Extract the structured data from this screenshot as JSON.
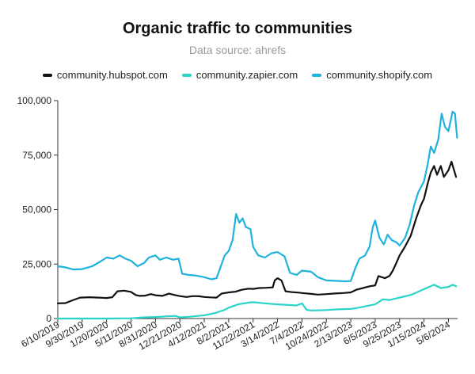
{
  "chart_data": {
    "type": "line",
    "title": "Organic traffic to communities",
    "subtitle": "Data source: ahrefs",
    "xlabel": "",
    "ylabel": "",
    "ylim": [
      0,
      100000
    ],
    "y_ticks": [
      "0",
      "25,000",
      "50,000",
      "75,000",
      "100,000"
    ],
    "x_ticks": [
      "6/10/2019",
      "9/30/2019",
      "1/20/2020",
      "5/11/2020",
      "8/31/2020",
      "12/21/2020",
      "4/12/2021",
      "8/2/2021",
      "11/22/2021",
      "3/14/2022",
      "7/4/2022",
      "10/24/2022",
      "2/13/2023",
      "6/5/2023",
      "9/25/2023",
      "1/15/2024",
      "5/6/2024"
    ],
    "x_range": [
      "2019-06-10",
      "2024-06-17"
    ],
    "legend_position": "top",
    "grid": false,
    "series": [
      {
        "name": "community.hubspot.com",
        "color": "#111111",
        "points": [
          [
            "2019-06-10",
            7000
          ],
          [
            "2019-07-15",
            7100
          ],
          [
            "2019-08-20",
            8500
          ],
          [
            "2019-09-20",
            9600
          ],
          [
            "2019-11-01",
            9800
          ],
          [
            "2019-12-15",
            9600
          ],
          [
            "2020-01-20",
            9400
          ],
          [
            "2020-02-15",
            9800
          ],
          [
            "2020-03-10",
            12500
          ],
          [
            "2020-04-10",
            12800
          ],
          [
            "2020-05-11",
            12200
          ],
          [
            "2020-06-01",
            10800
          ],
          [
            "2020-06-20",
            10400
          ],
          [
            "2020-07-15",
            10500
          ],
          [
            "2020-08-10",
            11200
          ],
          [
            "2020-08-31",
            10700
          ],
          [
            "2020-10-01",
            10400
          ],
          [
            "2020-11-01",
            11400
          ],
          [
            "2020-12-01",
            10700
          ],
          [
            "2020-12-21",
            10300
          ],
          [
            "2021-01-20",
            9900
          ],
          [
            "2021-02-20",
            10300
          ],
          [
            "2021-03-20",
            10200
          ],
          [
            "2021-04-12",
            9900
          ],
          [
            "2021-05-10",
            9700
          ],
          [
            "2021-06-07",
            9600
          ],
          [
            "2021-07-01",
            11500
          ],
          [
            "2021-08-02",
            12000
          ],
          [
            "2021-09-01",
            12300
          ],
          [
            "2021-10-01",
            13200
          ],
          [
            "2021-11-01",
            13700
          ],
          [
            "2021-11-22",
            13600
          ],
          [
            "2021-12-20",
            14000
          ],
          [
            "2022-01-20",
            14100
          ],
          [
            "2022-02-20",
            14300
          ],
          [
            "2022-03-01",
            17500
          ],
          [
            "2022-03-14",
            18500
          ],
          [
            "2022-04-01",
            17500
          ],
          [
            "2022-04-20",
            12500
          ],
          [
            "2022-05-20",
            12100
          ],
          [
            "2022-06-20",
            11900
          ],
          [
            "2022-07-04",
            11700
          ],
          [
            "2022-08-15",
            11300
          ],
          [
            "2022-09-15",
            11000
          ],
          [
            "2022-10-24",
            11200
          ],
          [
            "2022-12-01",
            11500
          ],
          [
            "2023-01-10",
            11700
          ],
          [
            "2023-02-13",
            12000
          ],
          [
            "2023-03-10",
            13200
          ],
          [
            "2023-04-10",
            14000
          ],
          [
            "2023-05-10",
            14800
          ],
          [
            "2023-06-05",
            15200
          ],
          [
            "2023-06-20",
            19500
          ],
          [
            "2023-07-20",
            18500
          ],
          [
            "2023-08-10",
            19600
          ],
          [
            "2023-08-25",
            22000
          ],
          [
            "2023-09-10",
            25500
          ],
          [
            "2023-09-25",
            29000
          ],
          [
            "2023-10-20",
            33000
          ],
          [
            "2023-11-15",
            38000
          ],
          [
            "2023-12-10",
            46000
          ],
          [
            "2024-01-01",
            52000
          ],
          [
            "2024-01-15",
            55000
          ],
          [
            "2024-02-01",
            62000
          ],
          [
            "2024-02-15",
            67000
          ],
          [
            "2024-03-01",
            70000
          ],
          [
            "2024-03-15",
            66000
          ],
          [
            "2024-04-01",
            70000
          ],
          [
            "2024-04-15",
            65000
          ],
          [
            "2024-05-06",
            68000
          ],
          [
            "2024-05-20",
            72000
          ],
          [
            "2024-06-10",
            65000
          ]
        ]
      },
      {
        "name": "community.zapier.com",
        "color": "#2bd4c9",
        "points": [
          [
            "2019-06-10",
            0
          ],
          [
            "2020-01-20",
            0
          ],
          [
            "2020-05-11",
            100
          ],
          [
            "2020-07-01",
            500
          ],
          [
            "2020-08-31",
            700
          ],
          [
            "2020-10-15",
            1000
          ],
          [
            "2020-12-01",
            1200
          ],
          [
            "2020-12-21",
            500
          ],
          [
            "2021-02-01",
            800
          ],
          [
            "2021-04-12",
            1500
          ],
          [
            "2021-06-01",
            2500
          ],
          [
            "2021-07-15",
            4000
          ],
          [
            "2021-08-02",
            5000
          ],
          [
            "2021-09-15",
            6500
          ],
          [
            "2021-11-01",
            7300
          ],
          [
            "2021-11-22",
            7500
          ],
          [
            "2022-01-15",
            7000
          ],
          [
            "2022-03-14",
            6500
          ],
          [
            "2022-05-01",
            6200
          ],
          [
            "2022-06-10",
            6000
          ],
          [
            "2022-07-04",
            7000
          ],
          [
            "2022-07-25",
            4000
          ],
          [
            "2022-08-15",
            3700
          ],
          [
            "2022-10-24",
            3900
          ],
          [
            "2022-12-15",
            4200
          ],
          [
            "2023-02-13",
            4400
          ],
          [
            "2023-04-01",
            5200
          ],
          [
            "2023-06-05",
            6500
          ],
          [
            "2023-07-10",
            8800
          ],
          [
            "2023-08-10",
            8500
          ],
          [
            "2023-09-25",
            9600
          ],
          [
            "2023-11-20",
            11000
          ],
          [
            "2024-01-15",
            13500
          ],
          [
            "2024-03-01",
            15500
          ],
          [
            "2024-04-01",
            14000
          ],
          [
            "2024-05-06",
            14500
          ],
          [
            "2024-05-25",
            15500
          ],
          [
            "2024-06-10",
            14800
          ]
        ]
      },
      {
        "name": "community.shopify.com",
        "color": "#20b2de",
        "points": [
          [
            "2019-06-10",
            24000
          ],
          [
            "2019-07-15",
            23500
          ],
          [
            "2019-08-20",
            22500
          ],
          [
            "2019-09-30",
            22700
          ],
          [
            "2019-11-15",
            24000
          ],
          [
            "2019-12-20",
            26000
          ],
          [
            "2020-01-20",
            28000
          ],
          [
            "2020-02-20",
            27500
          ],
          [
            "2020-03-20",
            29000
          ],
          [
            "2020-04-15",
            27500
          ],
          [
            "2020-05-11",
            26500
          ],
          [
            "2020-06-10",
            24000
          ],
          [
            "2020-07-10",
            25500
          ],
          [
            "2020-08-01",
            28000
          ],
          [
            "2020-08-31",
            29000
          ],
          [
            "2020-09-20",
            27000
          ],
          [
            "2020-10-20",
            28000
          ],
          [
            "2020-11-20",
            27000
          ],
          [
            "2020-12-15",
            27500
          ],
          [
            "2021-01-01",
            20500
          ],
          [
            "2021-02-01",
            20000
          ],
          [
            "2021-03-01",
            19800
          ],
          [
            "2021-04-12",
            19000
          ],
          [
            "2021-05-15",
            18000
          ],
          [
            "2021-06-07",
            18500
          ],
          [
            "2021-07-15",
            29000
          ],
          [
            "2021-08-02",
            31000
          ],
          [
            "2021-08-20",
            36000
          ],
          [
            "2021-09-05",
            48000
          ],
          [
            "2021-09-20",
            44000
          ],
          [
            "2021-10-05",
            46000
          ],
          [
            "2021-10-20",
            42000
          ],
          [
            "2021-11-10",
            41000
          ],
          [
            "2021-11-22",
            33000
          ],
          [
            "2021-12-15",
            29000
          ],
          [
            "2022-01-15",
            28000
          ],
          [
            "2022-02-15",
            30000
          ],
          [
            "2022-03-14",
            30500
          ],
          [
            "2022-04-15",
            28500
          ],
          [
            "2022-05-10",
            21000
          ],
          [
            "2022-06-10",
            20000
          ],
          [
            "2022-07-04",
            22000
          ],
          [
            "2022-08-15",
            21500
          ],
          [
            "2022-09-15",
            19000
          ],
          [
            "2022-10-24",
            17500
          ],
          [
            "2022-12-01",
            17300
          ],
          [
            "2023-01-15",
            17100
          ],
          [
            "2023-02-13",
            17200
          ],
          [
            "2023-03-05",
            23000
          ],
          [
            "2023-03-25",
            27500
          ],
          [
            "2023-04-20",
            29000
          ],
          [
            "2023-05-10",
            33000
          ],
          [
            "2023-05-25",
            42000
          ],
          [
            "2023-06-05",
            45000
          ],
          [
            "2023-06-25",
            37000
          ],
          [
            "2023-07-15",
            34000
          ],
          [
            "2023-08-01",
            38500
          ],
          [
            "2023-08-20",
            36000
          ],
          [
            "2023-09-10",
            35000
          ],
          [
            "2023-09-25",
            33500
          ],
          [
            "2023-10-20",
            37000
          ],
          [
            "2023-11-10",
            43000
          ],
          [
            "2023-12-01",
            52000
          ],
          [
            "2023-12-20",
            58000
          ],
          [
            "2024-01-15",
            63000
          ],
          [
            "2024-02-01",
            71000
          ],
          [
            "2024-02-15",
            79000
          ],
          [
            "2024-03-01",
            76000
          ],
          [
            "2024-03-20",
            82000
          ],
          [
            "2024-04-05",
            94000
          ],
          [
            "2024-04-20",
            88000
          ],
          [
            "2024-05-06",
            86000
          ],
          [
            "2024-05-25",
            95000
          ],
          [
            "2024-06-05",
            94000
          ],
          [
            "2024-06-15",
            83000
          ]
        ]
      }
    ]
  }
}
